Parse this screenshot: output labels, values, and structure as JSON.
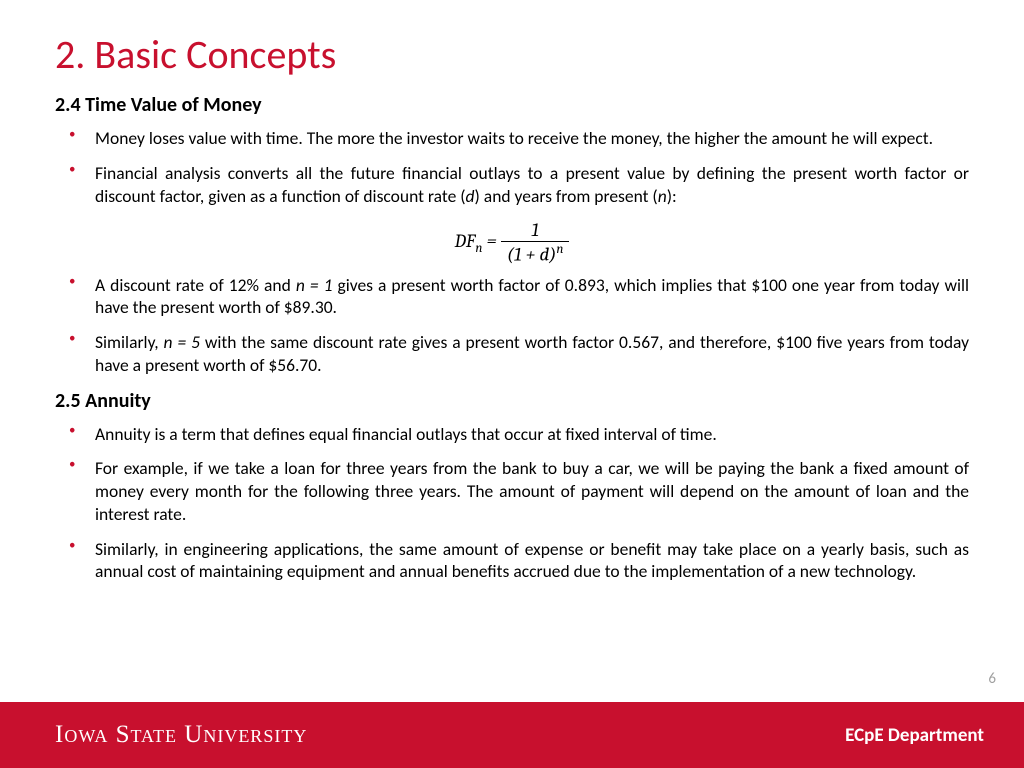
{
  "title": "2. Basic Concepts",
  "section1": {
    "heading": "2.4 Time Value of Money",
    "bullets": [
      "Money loses value with time. The more the investor waits to receive the money, the higher the amount he will expect.",
      "Financial analysis converts all the future financial outlays to a present value by defining the present worth factor or discount factor, given as a function of discount rate (d) and years from present (n):",
      "A discount rate of 12% and n = 1 gives a present worth factor of 0.893, which implies that $100 one year from today will have the present worth of $89.30.",
      "Similarly, n = 5 with the same discount rate gives a present worth factor 0.567, and therefore, $100 five years from today have a present worth of $56.70."
    ]
  },
  "formula": {
    "lhs_base": "DF",
    "lhs_sub": "n",
    "eq": " = ",
    "num": "1",
    "den_open": "(1 + ",
    "den_var": "d",
    "den_close": ")",
    "den_sup": "n"
  },
  "section2": {
    "heading": "2.5 Annuity",
    "bullets": [
      "Annuity is a term that defines equal financial outlays that occur at fixed interval of time.",
      "For example, if we take a loan for three years from the bank to buy a car, we will be paying the bank a fixed amount of money every month for the following three years. The amount of payment will depend on the amount of loan and the interest rate.",
      "Similarly, in engineering applications, the same amount of expense or benefit may take place on a yearly basis, such as annual cost of maintaining equipment and annual benefits accrued due to the implementation of a new technology."
    ]
  },
  "pagenum": "6",
  "footer": {
    "university": "Iowa State University",
    "department": "ECpE Department"
  },
  "colors": {
    "accent": "#c8102e",
    "text": "#000000",
    "pagenum": "#a0a0a0",
    "footer_text": "#ffffff",
    "background": "#ffffff"
  }
}
